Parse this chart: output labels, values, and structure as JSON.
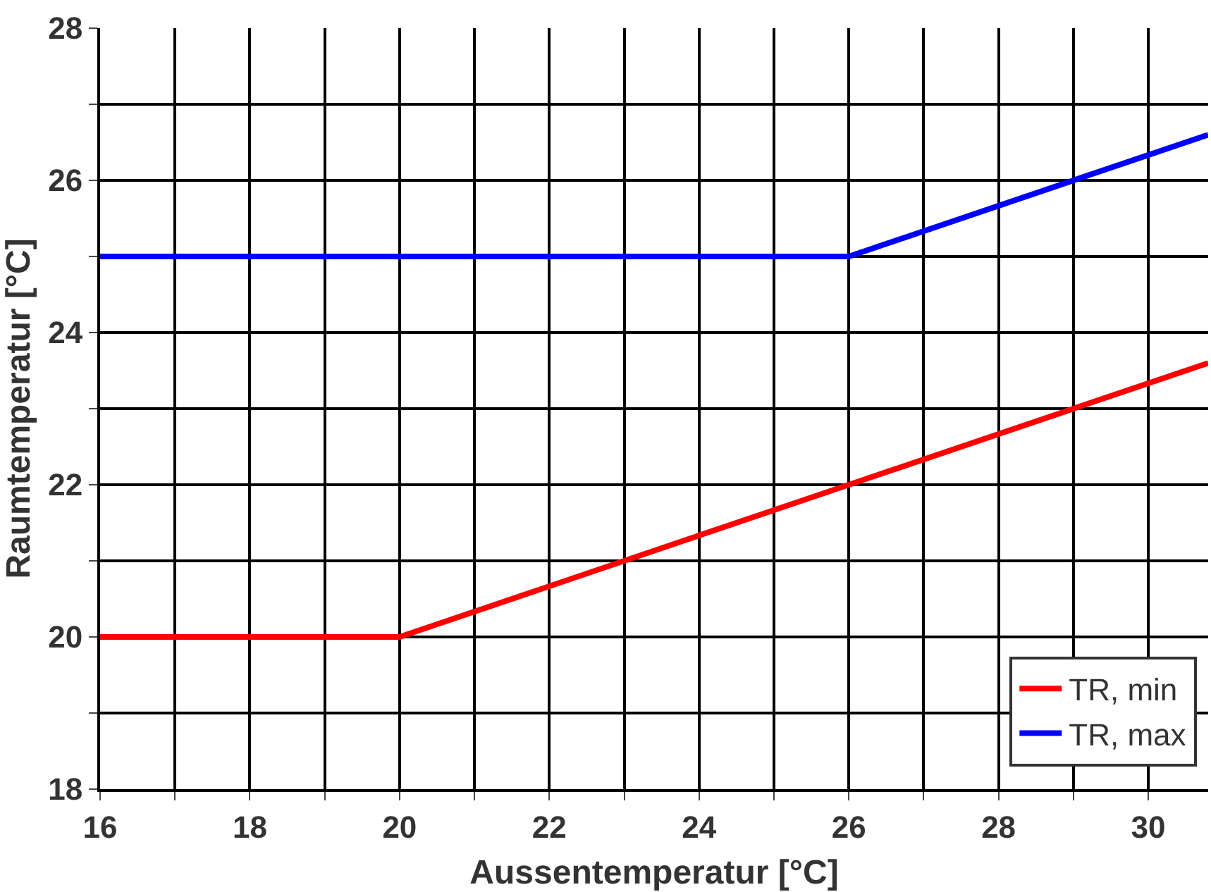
{
  "chart_data": {
    "type": "line",
    "xlabel": "Aussentemperatur [°C]",
    "ylabel": "Raumtemperatur [°C]",
    "xlim": [
      16,
      30.8
    ],
    "ylim": [
      18,
      28
    ],
    "xticks": [
      16,
      {
        "value": 17,
        "label": null
      },
      18,
      {
        "value": 19,
        "label": null
      },
      20,
      {
        "value": 21,
        "label": null
      },
      22,
      {
        "value": 23,
        "label": null
      },
      24,
      {
        "value": 25,
        "label": null
      },
      26,
      {
        "value": 27,
        "label": null
      },
      28,
      {
        "value": 29,
        "label": null
      },
      30
    ],
    "yticks": [
      18,
      {
        "value": 19,
        "label": null
      },
      20,
      {
        "value": 21,
        "label": null
      },
      22,
      {
        "value": 23,
        "label": null
      },
      24,
      {
        "value": 25,
        "label": null
      },
      26,
      {
        "value": 27,
        "label": null
      },
      28
    ],
    "grid": true,
    "legend": "bottom right",
    "marker": "none",
    "line_style": "solid",
    "series": [
      {
        "name": "TR, min",
        "color": "#ff0000",
        "x": [
          16,
          20,
          26,
          30.8
        ],
        "values": [
          20,
          20,
          22,
          23.6
        ]
      },
      {
        "name": "TR, max",
        "color": "#0000ff",
        "x": [
          16,
          26,
          30.8
        ],
        "values": [
          25,
          25,
          26.6
        ]
      }
    ]
  }
}
